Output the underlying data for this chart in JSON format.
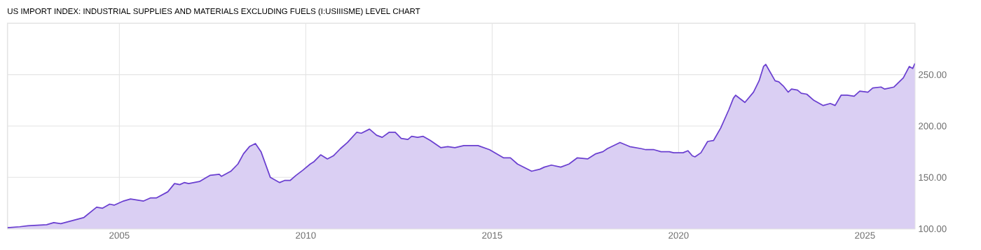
{
  "chart_data": {
    "type": "area",
    "title": "US IMPORT INDEX: INDUSTRIAL SUPPLIES AND MATERIALS EXCLUDING FUELS (I:USIIISME) LEVEL CHART",
    "x": [
      2002.0,
      2002.33,
      2002.55,
      2003.05,
      2003.24,
      2003.43,
      2003.74,
      2004.05,
      2004.39,
      2004.55,
      2004.74,
      2004.86,
      2005.11,
      2005.3,
      2005.65,
      2005.83,
      2005.99,
      2006.3,
      2006.48,
      2006.62,
      2006.74,
      2006.86,
      2007.15,
      2007.43,
      2007.68,
      2007.74,
      2007.99,
      2008.18,
      2008.33,
      2008.49,
      2008.65,
      2008.8,
      2009.05,
      2009.3,
      2009.43,
      2009.58,
      2009.74,
      2009.92,
      2010.12,
      2010.21,
      2010.4,
      2010.58,
      2010.74,
      2010.93,
      2011.12,
      2011.37,
      2011.49,
      2011.71,
      2011.9,
      2012.05,
      2012.24,
      2012.4,
      2012.56,
      2012.74,
      2012.84,
      2013.0,
      2013.15,
      2013.34,
      2013.62,
      2013.81,
      2014.0,
      2014.24,
      2014.49,
      2014.62,
      2014.93,
      2015.31,
      2015.49,
      2015.68,
      2016.06,
      2016.28,
      2016.4,
      2016.59,
      2016.84,
      2017.06,
      2017.28,
      2017.56,
      2017.78,
      2017.97,
      2018.09,
      2018.43,
      2018.69,
      2019.0,
      2019.12,
      2019.34,
      2019.53,
      2019.75,
      2019.87,
      2020.12,
      2020.25,
      2020.37,
      2020.44,
      2020.6,
      2020.78,
      2020.94,
      2021.13,
      2021.35,
      2021.47,
      2021.53,
      2021.78,
      2022.01,
      2022.16,
      2022.28,
      2022.34,
      2022.59,
      2022.69,
      2022.81,
      2022.94,
      2023.03,
      2023.19,
      2023.29,
      2023.44,
      2023.63,
      2023.88,
      2024.07,
      2024.2,
      2024.36,
      2024.52,
      2024.71,
      2024.86,
      2025.08,
      2025.21,
      2025.43,
      2025.53,
      2025.78,
      2026.03,
      2026.19,
      2026.28,
      2026.34
    ],
    "values": [
      101,
      102,
      103,
      104,
      106,
      105,
      108,
      111,
      121,
      120,
      124,
      123,
      127,
      129,
      127,
      130,
      130,
      136,
      144,
      143,
      145,
      144,
      146,
      152,
      153,
      151,
      156,
      163,
      173,
      180,
      183,
      175,
      150,
      145,
      147,
      147,
      152,
      157,
      163,
      165,
      172,
      168,
      171,
      178,
      184,
      194,
      193,
      197,
      191,
      189,
      194,
      194,
      188,
      187,
      190,
      189,
      190,
      186,
      179,
      180,
      179,
      181,
      181,
      181,
      177,
      169,
      169,
      163,
      156,
      158,
      160,
      162,
      160,
      163,
      169,
      168,
      173,
      175,
      178,
      184,
      180,
      178,
      177,
      177,
      175,
      175,
      174,
      174,
      176,
      171,
      170,
      174,
      185,
      186,
      198,
      216,
      227,
      230,
      223,
      233,
      244,
      258,
      260,
      244,
      243,
      239,
      233,
      236,
      235,
      232,
      231,
      225,
      220,
      222,
      220,
      230,
      230,
      229,
      234,
      233,
      237,
      238,
      236,
      238,
      247,
      258,
      256,
      261
    ],
    "color": "#6a3fd0",
    "xlim": [
      2002.0,
      2026.34
    ],
    "xticks": [
      2005,
      2010,
      2015,
      2020,
      2025
    ],
    "ylim": [
      100,
      300
    ],
    "yticks": [
      {
        "value": 100,
        "label": "100.00"
      },
      {
        "value": 150,
        "label": "150.00"
      },
      {
        "value": 200,
        "label": "200.00"
      },
      {
        "value": 250,
        "label": "250.00"
      }
    ],
    "grid": true
  }
}
